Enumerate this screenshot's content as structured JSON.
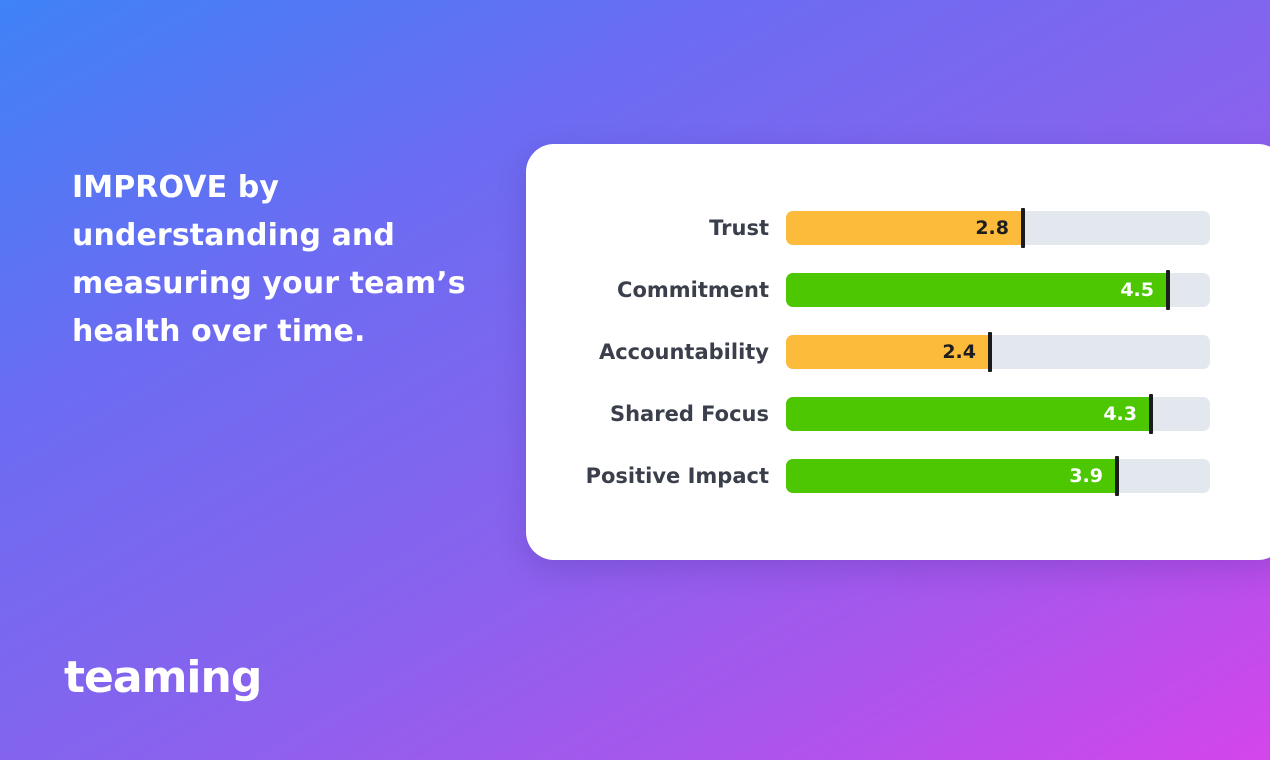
{
  "headline": {
    "line1": "IMPROVE by",
    "line2": "understanding and",
    "line3": "measuring your team’s",
    "line4": "health over time."
  },
  "logo": {
    "text": "teaming",
    "color": "#ffffff"
  },
  "colors": {
    "low": "#fdbb3c",
    "high": "#4cc701",
    "track": "#e3e7ee",
    "marker": "#1b1b1b",
    "label": "#3a3f4b"
  },
  "scale_max": 5,
  "metrics": [
    {
      "label": "Trust",
      "value": 2.8,
      "display": "2.8",
      "status": "low"
    },
    {
      "label": "Commitment",
      "value": 4.5,
      "display": "4.5",
      "status": "high"
    },
    {
      "label": "Accountability",
      "value": 2.4,
      "display": "2.4",
      "status": "low"
    },
    {
      "label": "Shared Focus",
      "value": 4.3,
      "display": "4.3",
      "status": "high"
    },
    {
      "label": "Positive Impact",
      "value": 3.9,
      "display": "3.9",
      "status": "high"
    }
  ]
}
